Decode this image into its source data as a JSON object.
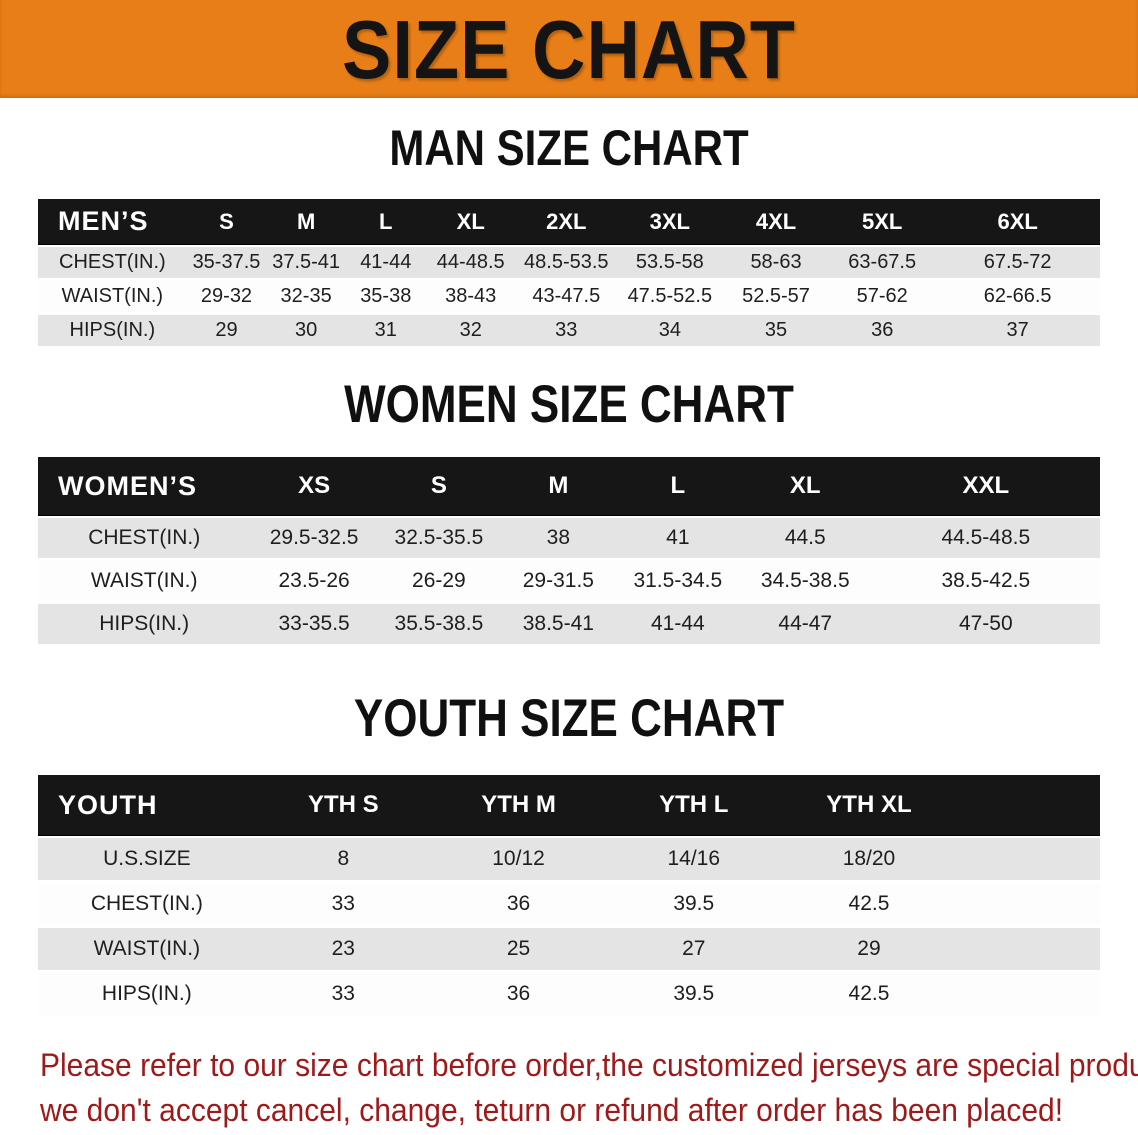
{
  "banner": {
    "title": "SIZE CHART",
    "background_color": "#e87e17",
    "text_color": "#141414"
  },
  "sections": {
    "men": {
      "title": "MAN SIZE CHART"
    },
    "women": {
      "title": "WOMEN SIZE CHART"
    },
    "youth": {
      "title": "YOUTH SIZE CHART"
    }
  },
  "tables": {
    "mens": {
      "header": [
        "MEN’S",
        "S",
        "M",
        "L",
        "XL",
        "2XL",
        "3XL",
        "4XL",
        "5XL",
        "6XL"
      ],
      "rows": [
        [
          "CHEST(IN.)",
          "35-37.5",
          "37.5-41",
          "41-44",
          "44-48.5",
          "48.5-53.5",
          "53.5-58",
          "58-63",
          "63-67.5",
          "67.5-72"
        ],
        [
          "WAIST(IN.)",
          "29-32",
          "32-35",
          "35-38",
          "38-43",
          "43-47.5",
          "47.5-52.5",
          "52.5-57",
          "57-62",
          "62-66.5"
        ],
        [
          "HIPS(IN.)",
          "29",
          "30",
          "31",
          "32",
          "33",
          "34",
          "35",
          "36",
          "37"
        ]
      ]
    },
    "womens": {
      "header": [
        "WOMEN’S",
        "XS",
        "S",
        "M",
        "L",
        "XL",
        "XXL"
      ],
      "rows": [
        [
          "CHEST(IN.)",
          "29.5-32.5",
          "32.5-35.5",
          "38",
          "41",
          "44.5",
          "44.5-48.5"
        ],
        [
          "WAIST(IN.)",
          "23.5-26",
          "26-29",
          "29-31.5",
          "31.5-34.5",
          "34.5-38.5",
          "38.5-42.5"
        ],
        [
          "HIPS(IN.)",
          "33-35.5",
          "35.5-38.5",
          "38.5-41",
          "41-44",
          "44-47",
          "47-50"
        ]
      ]
    },
    "youth": {
      "header": [
        "YOUTH",
        "YTH S",
        "YTH M",
        "YTH L",
        "YTH XL"
      ],
      "rows": [
        [
          "U.S.SIZE",
          "8",
          "10/12",
          "14/16",
          "18/20"
        ],
        [
          "CHEST(IN.)",
          "33",
          "36",
          "39.5",
          "42.5"
        ],
        [
          "WAIST(IN.)",
          "23",
          "25",
          "27",
          "29"
        ],
        [
          "HIPS(IN.)",
          "33",
          "36",
          "39.5",
          "42.5"
        ]
      ]
    }
  },
  "disclaimer": {
    "text_color": "#9e1a1a",
    "lines": [
      "Please refer to our size chart before order,the customized jerseys are special products,",
      "we don't accept cancel, change, teturn or refund after order has been placed!"
    ]
  },
  "colors": {
    "table_header_bar": "#161616",
    "row_shaded": "#e4e4e4",
    "row_plain": "#fdfdfd"
  }
}
